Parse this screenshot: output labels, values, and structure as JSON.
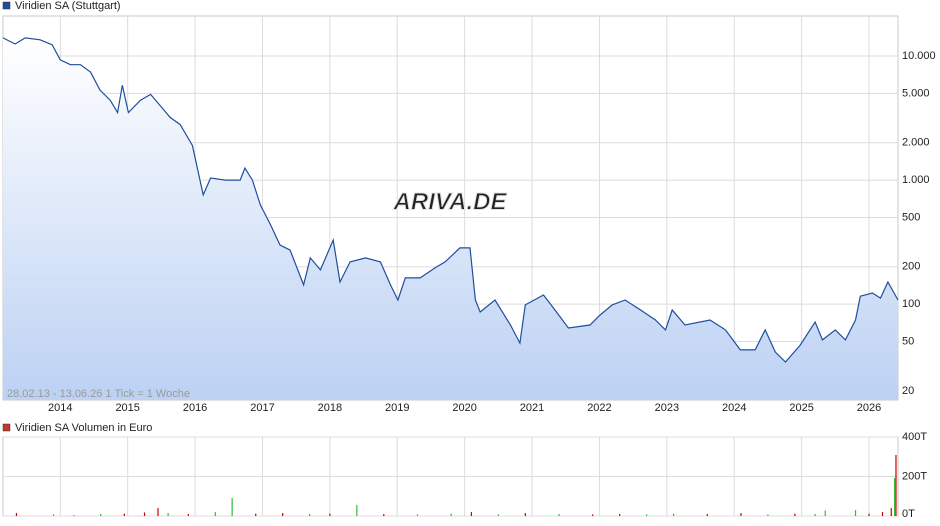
{
  "chart_data": [
    {
      "type": "line",
      "log_scale": true,
      "grid": true,
      "legend": "top-left",
      "fill": true,
      "annotation": "28.02.13 - 13.06.26   1 Tick = 1 Woche",
      "watermark": "ARIVA.DE",
      "xlim": [
        2013.15,
        2026.43
      ],
      "xticks": [
        2014,
        2015,
        2016,
        2017,
        2018,
        2019,
        2020,
        2021,
        2022,
        2023,
        2024,
        2025,
        2026
      ],
      "ylim": [
        16.9,
        21000
      ],
      "yticks": [
        {
          "value": 10000,
          "label": "10.000"
        },
        {
          "value": 5000,
          "label": "5.000"
        },
        {
          "value": 2000,
          "label": "2.000"
        },
        {
          "value": 1000,
          "label": "1.000"
        },
        500,
        200,
        100,
        50,
        20
      ],
      "x": [
        2013.15,
        2013.33,
        2013.48,
        2013.7,
        2013.88,
        2014.0,
        2014.15,
        2014.3,
        2014.45,
        2014.59,
        2014.74,
        2014.85,
        2014.92,
        2015.01,
        2015.19,
        2015.34,
        2015.48,
        2015.63,
        2015.78,
        2015.96,
        2016.12,
        2016.23,
        2016.45,
        2016.67,
        2016.74,
        2016.85,
        2016.97,
        2017.12,
        2017.26,
        2017.41,
        2017.61,
        2017.71,
        2017.86,
        2018.05,
        2018.15,
        2018.3,
        2018.53,
        2018.75,
        2018.9,
        2019.01,
        2019.12,
        2019.34,
        2019.56,
        2019.71,
        2019.93,
        2020.08,
        2020.16,
        2020.23,
        2020.45,
        2020.68,
        2020.82,
        2020.9,
        2021.17,
        2021.34,
        2021.54,
        2021.86,
        2022.01,
        2022.19,
        2022.38,
        2022.61,
        2022.83,
        2022.98,
        2023.08,
        2023.27,
        2023.64,
        2023.87,
        2024.09,
        2024.31,
        2024.46,
        2024.61,
        2024.76,
        2024.98,
        2025.2,
        2025.31,
        2025.5,
        2025.65,
        2025.8,
        2025.87,
        2026.05,
        2026.17,
        2026.28,
        2026.43
      ],
      "series": [
        {
          "name": "Viridien SA (Stuttgart)",
          "color": "#1f4e9e",
          "values": [
            14000,
            12500,
            14000,
            13500,
            12300,
            9300,
            8500,
            8500,
            7400,
            5300,
            4400,
            3500,
            5800,
            3500,
            4400,
            4900,
            4000,
            3200,
            2800,
            1900,
            760,
            1040,
            1000,
            1000,
            1250,
            1000,
            630,
            435,
            300,
            273,
            143,
            236,
            189,
            329,
            151,
            219,
            236,
            219,
            143,
            108,
            163,
            163,
            196,
            219,
            284,
            284,
            108,
            86.5,
            108,
            68,
            48.6,
            98.6,
            118.6,
            89.8,
            64.3,
            68,
            81.8,
            98.6,
            108,
            89.8,
            74.6,
            62,
            89.8,
            68,
            74.6,
            62,
            42.8,
            42.8,
            62,
            41.2,
            34.2,
            46.9,
            71.9,
            51.5,
            62,
            51.5,
            74.6,
            116,
            123,
            112,
            151,
            108
          ]
        }
      ]
    },
    {
      "type": "bar",
      "grid": true,
      "legend": "top-left",
      "xlim": [
        2013.15,
        2026.43
      ],
      "xticks": [
        2014,
        2015,
        2016,
        2017,
        2018,
        2019,
        2020,
        2021,
        2022,
        2023,
        2024,
        2025,
        2026
      ],
      "ylim": [
        0,
        400000
      ],
      "yticks": [
        {
          "value": 400000,
          "label": "400T"
        },
        {
          "value": 200000,
          "label": "200T"
        },
        {
          "value": 0,
          "label": "0T"
        }
      ],
      "x": [
        2013.35,
        2013.9,
        2014.2,
        2014.6,
        2014.95,
        2015.25,
        2015.45,
        2015.6,
        2015.9,
        2016.3,
        2016.55,
        2016.9,
        2017.3,
        2017.7,
        2018.0,
        2018.4,
        2018.8,
        2019.3,
        2019.8,
        2020.1,
        2020.5,
        2020.9,
        2021.4,
        2021.9,
        2022.3,
        2022.7,
        2023.1,
        2023.6,
        2024.1,
        2024.5,
        2024.9,
        2025.2,
        2025.35,
        2025.8,
        2026.0,
        2026.2,
        2026.33,
        2026.38,
        2026.4
      ],
      "bar_colors": [
        "#cc0000",
        "#33bb33",
        "#33bb33",
        "#33bb33",
        "#cc0000",
        "#cc0000",
        "#cc0000",
        "#33bb33",
        "#cc0000",
        "#33bb33",
        "#33bb33",
        "#cc0000",
        "#cc0000",
        "#33bb33",
        "#cc0000",
        "#33bb33",
        "#cc0000",
        "#33bb33",
        "#33bb33",
        "#cc0000",
        "#33bb33",
        "#cc0000",
        "#33bb33",
        "#cc0000",
        "#cc0000",
        "#33bb33",
        "#33bb33",
        "#cc0000",
        "#cc0000",
        "#33bb33",
        "#cc0000",
        "#33bb33",
        "#33bb33",
        "#33bb33",
        "#cc0000",
        "#cc0000",
        "#cc0000",
        "#33bb33",
        "#cc0000"
      ],
      "series": [
        {
          "name": "Viridien SA Volumen in Euro",
          "color": "#c0392b",
          "values": [
            15000,
            8000,
            5000,
            10000,
            12000,
            18000,
            40000,
            15000,
            10000,
            20000,
            91000,
            12000,
            15000,
            10000,
            12000,
            56000,
            10000,
            8000,
            12000,
            20000,
            8000,
            15000,
            10000,
            8000,
            10000,
            8000,
            12000,
            10000,
            15000,
            8000,
            12000,
            10000,
            28000,
            30000,
            12000,
            20000,
            40000,
            192000,
            309000
          ]
        }
      ]
    }
  ]
}
